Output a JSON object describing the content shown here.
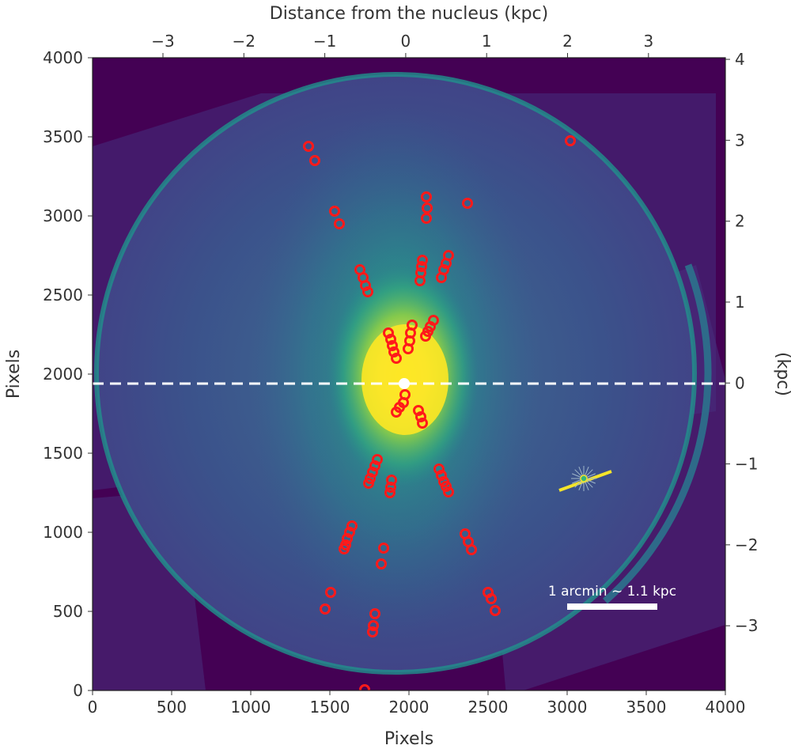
{
  "chart_data": {
    "type": "scatter",
    "title": "",
    "xlabel": "Pixels",
    "ylabel": "Pixels",
    "x2label": "Distance from the nucleus (kpc)",
    "y2label": "(kpc)",
    "xlim": [
      0,
      4000
    ],
    "ylim": [
      0,
      4000
    ],
    "x2lim": [
      -3.87,
      3.95
    ],
    "y2lim": [
      -3.8,
      4.02
    ],
    "x_ticks": [
      0,
      500,
      1000,
      1500,
      2000,
      2500,
      3000,
      3500,
      4000
    ],
    "y_ticks": [
      0,
      500,
      1000,
      1500,
      2000,
      2500,
      3000,
      3500,
      4000
    ],
    "x2_ticks": [
      -3,
      -2,
      -1,
      0,
      1,
      2,
      3
    ],
    "y2_ticks": [
      -3,
      -2,
      -1,
      0,
      1,
      2,
      3,
      4
    ],
    "tick_labels": {
      "x": [
        "0",
        "500",
        "1000",
        "1500",
        "2000",
        "2500",
        "3000",
        "3500",
        "4000"
      ],
      "y": [
        "0",
        "500",
        "1000",
        "1500",
        "2000",
        "2500",
        "3000",
        "3500",
        "4000"
      ],
      "x2": [
        "−3",
        "−2",
        "−1",
        "0",
        "1",
        "2",
        "3"
      ],
      "y2": [
        "−3",
        "−2",
        "−1",
        "0",
        "1",
        "2",
        "3",
        "4"
      ]
    },
    "background_image": "galaxy-colormap-image",
    "colors": {
      "background": "#440154",
      "disk": "#3b528b",
      "bulge": "#fde725",
      "markers": "#ff1a1a",
      "nucleus": "#ffffff",
      "dashed_line": "#ffffff",
      "star_line": "#f5e52a"
    },
    "nucleus": {
      "x": 1970,
      "y": 1940
    },
    "horizontal_line_y": 1940,
    "series": [
      {
        "marker": "open-circle",
        "points": [
          [
            1365,
            3440
          ],
          [
            1405,
            3350
          ],
          [
            1530,
            3030
          ],
          [
            1560,
            2950
          ],
          [
            3020,
            3475
          ],
          [
            2110,
            3120
          ],
          [
            2115,
            3050
          ],
          [
            2110,
            2985
          ],
          [
            2370,
            3080
          ],
          [
            1690,
            2660
          ],
          [
            1710,
            2610
          ],
          [
            1725,
            2560
          ],
          [
            1740,
            2520
          ],
          [
            2085,
            2720
          ],
          [
            2080,
            2680
          ],
          [
            2075,
            2640
          ],
          [
            2070,
            2590
          ],
          [
            2250,
            2750
          ],
          [
            2235,
            2700
          ],
          [
            2220,
            2660
          ],
          [
            2205,
            2610
          ],
          [
            1870,
            2260
          ],
          [
            1885,
            2220
          ],
          [
            1895,
            2180
          ],
          [
            1905,
            2140
          ],
          [
            1920,
            2100
          ],
          [
            2020,
            2310
          ],
          [
            2010,
            2260
          ],
          [
            2005,
            2210
          ],
          [
            1995,
            2160
          ],
          [
            2155,
            2340
          ],
          [
            2135,
            2300
          ],
          [
            2120,
            2270
          ],
          [
            2105,
            2240
          ],
          [
            1975,
            1870
          ],
          [
            1965,
            1820
          ],
          [
            1940,
            1790
          ],
          [
            1920,
            1760
          ],
          [
            2060,
            1770
          ],
          [
            2075,
            1730
          ],
          [
            2085,
            1690
          ],
          [
            1800,
            1460
          ],
          [
            1785,
            1420
          ],
          [
            1770,
            1380
          ],
          [
            1755,
            1340
          ],
          [
            1745,
            1310
          ],
          [
            1890,
            1330
          ],
          [
            1885,
            1285
          ],
          [
            1880,
            1250
          ],
          [
            2190,
            1400
          ],
          [
            2205,
            1360
          ],
          [
            2220,
            1320
          ],
          [
            2235,
            1290
          ],
          [
            2250,
            1255
          ],
          [
            1640,
            1040
          ],
          [
            1625,
            1000
          ],
          [
            1610,
            960
          ],
          [
            1600,
            920
          ],
          [
            1590,
            895
          ],
          [
            1840,
            900
          ],
          [
            1825,
            800
          ],
          [
            2355,
            990
          ],
          [
            2375,
            940
          ],
          [
            2395,
            890
          ],
          [
            1505,
            620
          ],
          [
            1470,
            515
          ],
          [
            1785,
            485
          ],
          [
            1775,
            410
          ],
          [
            1770,
            370
          ],
          [
            2500,
            620
          ],
          [
            2520,
            580
          ],
          [
            2545,
            505
          ],
          [
            1720,
            5
          ]
        ]
      }
    ],
    "annotations": [
      {
        "text": "1 arcmin ~ 1.1 kpc",
        "bar_x": [
          3000,
          3570
        ],
        "bar_y": 530
      }
    ],
    "bright_star": {
      "x": 3105,
      "y": 1340,
      "line": [
        [
          2950,
          1265
        ],
        [
          3280,
          1385
        ]
      ]
    }
  }
}
